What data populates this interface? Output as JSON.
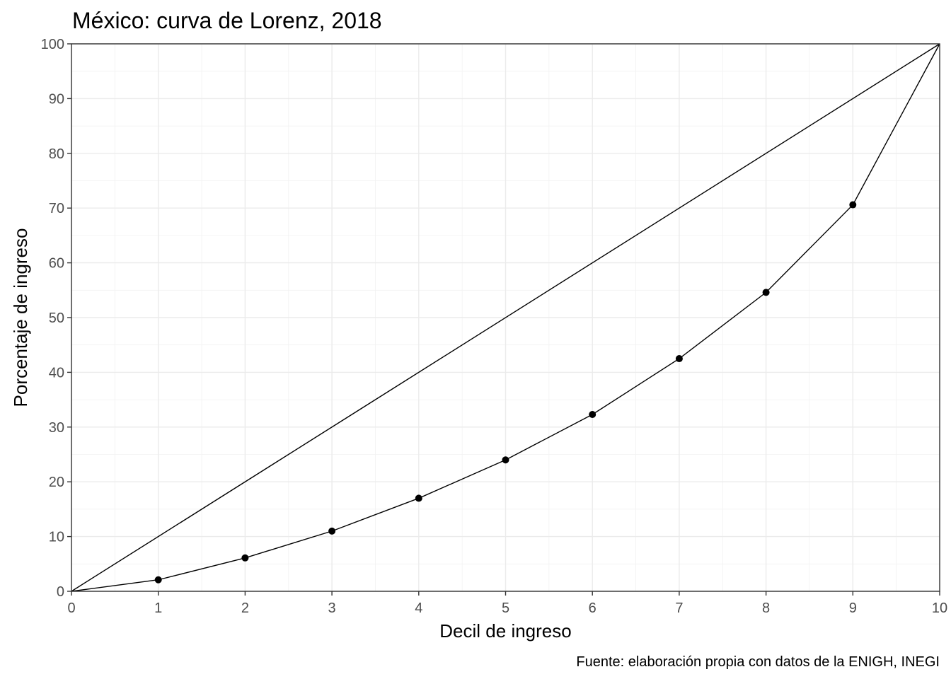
{
  "chart_data": {
    "type": "line",
    "title": "México: curva de Lorenz, 2018",
    "xlabel": "Decil de ingreso",
    "ylabel": "Porcentaje de ingreso",
    "caption": "Fuente: elaboración propia con datos de la ENIGH, INEGI",
    "xlim": [
      0,
      10
    ],
    "ylim": [
      0,
      100
    ],
    "xticks": [
      0,
      1,
      2,
      3,
      4,
      5,
      6,
      7,
      8,
      9,
      10
    ],
    "yticks": [
      0,
      10,
      20,
      30,
      40,
      50,
      60,
      70,
      80,
      90,
      100
    ],
    "grid": true,
    "series": [
      {
        "points": [
          [
            0,
            0
          ],
          [
            10,
            100
          ]
        ],
        "markers": false,
        "color": "#000000"
      },
      {
        "points": [
          [
            0,
            0
          ],
          [
            1,
            2.1
          ],
          [
            2,
            6.1
          ],
          [
            3,
            11.0
          ],
          [
            4,
            17.0
          ],
          [
            5,
            24.0
          ],
          [
            6,
            32.3
          ],
          [
            7,
            42.5
          ],
          [
            8,
            54.6
          ],
          [
            9,
            70.6
          ],
          [
            10,
            100
          ]
        ],
        "markers": true,
        "marker_points": [
          [
            1,
            2.1
          ],
          [
            2,
            6.1
          ],
          [
            3,
            11.0
          ],
          [
            4,
            17.0
          ],
          [
            5,
            24.0
          ],
          [
            6,
            32.3
          ],
          [
            7,
            42.5
          ],
          [
            8,
            54.6
          ],
          [
            9,
            70.6
          ]
        ],
        "color": "#000000"
      }
    ]
  }
}
